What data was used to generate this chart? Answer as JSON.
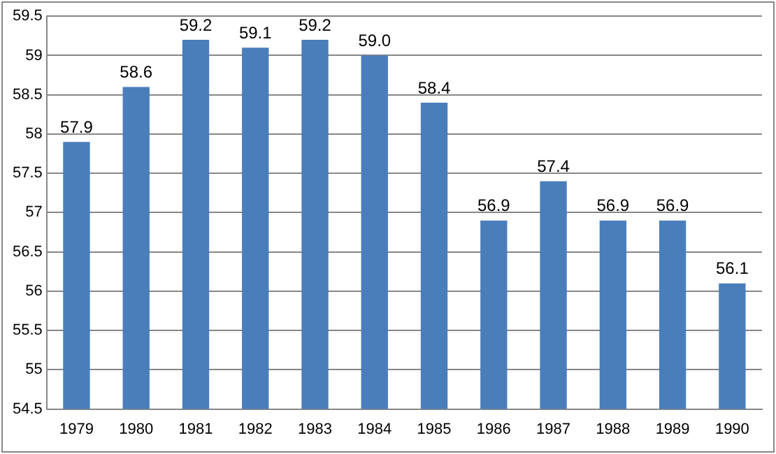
{
  "chart_data": {
    "type": "bar",
    "categories": [
      "1979",
      "1980",
      "1981",
      "1982",
      "1983",
      "1984",
      "1985",
      "1986",
      "1987",
      "1988",
      "1989",
      "1990"
    ],
    "values": [
      57.9,
      58.6,
      59.2,
      59.1,
      59.2,
      59.0,
      58.4,
      56.9,
      57.4,
      56.9,
      56.9,
      56.1
    ],
    "value_labels": [
      "57.9",
      "58.6",
      "59.2",
      "59.1",
      "59.2",
      "59.0",
      "58.4",
      "56.9",
      "57.4",
      "56.9",
      "56.9",
      "56.1"
    ],
    "color": "#4a7ebb",
    "ylim": [
      54.5,
      59.5
    ],
    "yticks": [
      {
        "value": 54.5,
        "label": "54.5"
      },
      {
        "value": 55,
        "label": "55"
      },
      {
        "value": 55.5,
        "label": "55.5"
      },
      {
        "value": 56,
        "label": "56"
      },
      {
        "value": 56.5,
        "label": "56.5"
      },
      {
        "value": 57,
        "label": "57"
      },
      {
        "value": 57.5,
        "label": "57.5"
      },
      {
        "value": 58,
        "label": "58"
      },
      {
        "value": 58.5,
        "label": "58.5"
      },
      {
        "value": 59,
        "label": "59"
      },
      {
        "value": 59.5,
        "label": "59.5"
      }
    ],
    "grid": "y"
  }
}
